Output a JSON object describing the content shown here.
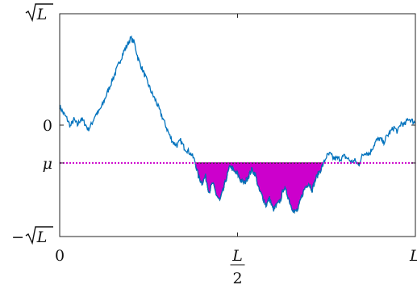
{
  "chart_data": {
    "type": "line",
    "title": "",
    "xlabel": "",
    "ylabel": "",
    "xlim": [
      0,
      1
    ],
    "ylim": [
      -1,
      1
    ],
    "grid": false,
    "mu": -0.34,
    "x_ticks": [
      {
        "value": 0,
        "label": "0"
      },
      {
        "value": 0.5,
        "label_num": "L",
        "label_den": "2"
      },
      {
        "value": 1,
        "label": "L"
      }
    ],
    "y_ticks": [
      {
        "value": 1,
        "label_prefix": "",
        "label_sym": "L"
      },
      {
        "value": 0,
        "label": "0"
      },
      {
        "value": -0.34,
        "label": "μ"
      },
      {
        "value": -1,
        "label_prefix": "−",
        "label_sym": "L"
      }
    ],
    "colors": {
      "walk": "#0072bd",
      "mu_line": "#cc00cc",
      "fill": "#cc00cc",
      "excursion_outline": "#000000",
      "axis": "#262626"
    },
    "series": [
      {
        "role": "walk",
        "x": [
          0.0,
          0.01,
          0.02,
          0.03,
          0.04,
          0.05,
          0.06,
          0.07,
          0.08,
          0.09,
          0.1,
          0.11,
          0.12,
          0.13,
          0.14,
          0.15,
          0.16,
          0.17,
          0.18,
          0.19,
          0.2,
          0.21,
          0.22,
          0.23,
          0.24,
          0.25,
          0.26,
          0.27,
          0.28,
          0.29,
          0.3,
          0.31,
          0.32,
          0.33,
          0.34,
          0.35,
          0.36,
          0.37,
          0.38,
          0.39,
          0.4,
          0.41,
          0.42,
          0.43,
          0.44,
          0.45,
          0.46,
          0.47,
          0.48,
          0.49,
          0.5,
          0.51,
          0.52,
          0.53,
          0.54,
          0.55,
          0.56,
          0.57,
          0.58,
          0.59,
          0.6,
          0.61,
          0.62,
          0.63,
          0.64,
          0.65,
          0.66,
          0.67,
          0.68,
          0.69,
          0.7,
          0.71,
          0.72,
          0.73,
          0.74,
          0.75,
          0.76,
          0.77,
          0.78,
          0.79,
          0.8,
          0.81,
          0.82,
          0.83,
          0.84,
          0.85,
          0.86,
          0.87,
          0.88,
          0.89,
          0.9,
          0.91,
          0.92,
          0.93,
          0.94,
          0.95,
          0.96,
          0.97,
          0.98,
          0.99,
          1.0
        ],
        "y": [
          0.17,
          0.11,
          0.06,
          -0.01,
          0.05,
          0.0,
          0.06,
          0.02,
          -0.04,
          0.01,
          0.09,
          0.12,
          0.18,
          0.26,
          0.34,
          0.42,
          0.5,
          0.58,
          0.66,
          0.72,
          0.78,
          0.74,
          0.6,
          0.52,
          0.44,
          0.36,
          0.28,
          0.22,
          0.14,
          0.06,
          -0.02,
          -0.1,
          -0.16,
          -0.18,
          -0.14,
          -0.2,
          -0.23,
          -0.26,
          -0.32,
          -0.46,
          -0.52,
          -0.46,
          -0.6,
          -0.52,
          -0.62,
          -0.68,
          -0.58,
          -0.46,
          -0.36,
          -0.42,
          -0.44,
          -0.5,
          -0.52,
          -0.46,
          -0.4,
          -0.44,
          -0.58,
          -0.64,
          -0.72,
          -0.66,
          -0.76,
          -0.72,
          -0.68,
          -0.56,
          -0.62,
          -0.72,
          -0.78,
          -0.76,
          -0.64,
          -0.56,
          -0.52,
          -0.58,
          -0.48,
          -0.42,
          -0.36,
          -0.28,
          -0.26,
          -0.3,
          -0.3,
          -0.3,
          -0.28,
          -0.3,
          -0.33,
          -0.32,
          -0.36,
          -0.28,
          -0.24,
          -0.26,
          -0.2,
          -0.14,
          -0.12,
          -0.16,
          -0.1,
          -0.06,
          -0.02,
          -0.06,
          0.02,
          0.0,
          0.06,
          0.04,
          0.02
        ]
      }
    ]
  }
}
